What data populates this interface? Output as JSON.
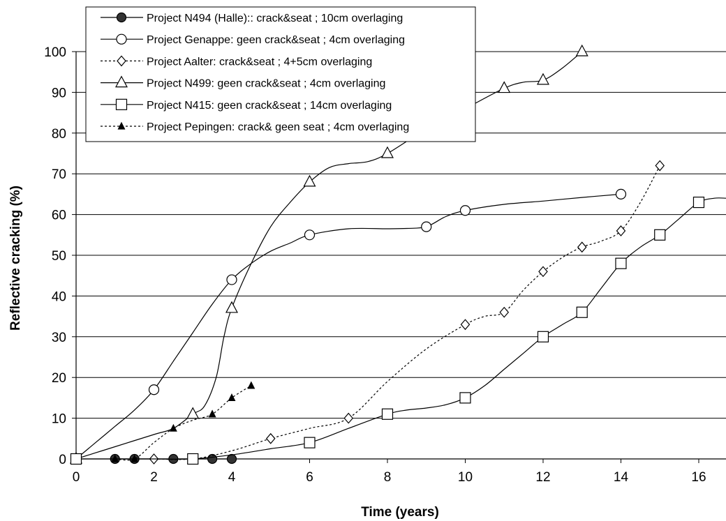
{
  "chart_data": {
    "type": "line",
    "title": "",
    "xlabel": "Time (years)",
    "ylabel": "Reflective cracking (%)",
    "xlim": [
      0,
      16.7
    ],
    "ylim": [
      0,
      100
    ],
    "x_ticks": [
      0,
      2,
      4,
      6,
      8,
      10,
      12,
      14,
      16
    ],
    "y_ticks": [
      0,
      10,
      20,
      30,
      40,
      50,
      60,
      70,
      80,
      90,
      100
    ],
    "grid": "horizontal",
    "legend_position": "top-left",
    "series": [
      {
        "name": "Project N494 (Halle):: crack&seat ; 10cm overlaging",
        "marker": "filled-circle",
        "line": "solid",
        "color": "#000000",
        "points": [
          [
            1,
            0
          ],
          [
            1.5,
            0
          ],
          [
            2.5,
            0
          ],
          [
            3.5,
            0
          ],
          [
            4,
            0
          ]
        ],
        "path": [
          [
            1,
            0
          ],
          [
            1.5,
            0
          ],
          [
            2.5,
            0
          ],
          [
            3.5,
            0
          ],
          [
            4,
            0
          ]
        ]
      },
      {
        "name": "Project Genappe: geen crack&seat ; 4cm overlaging",
        "marker": "open-circle",
        "line": "solid",
        "color": "#000000",
        "points": [
          [
            0,
            0
          ],
          [
            2,
            17
          ],
          [
            4,
            44
          ],
          [
            6,
            55
          ],
          [
            9,
            57
          ],
          [
            10,
            61
          ],
          [
            14,
            65
          ]
        ],
        "path": [
          [
            0,
            0
          ],
          [
            0.5,
            4
          ],
          [
            1,
            8
          ],
          [
            1.5,
            12
          ],
          [
            2,
            17
          ],
          [
            2.5,
            24
          ],
          [
            3,
            31
          ],
          [
            3.5,
            38
          ],
          [
            4,
            44
          ],
          [
            4.5,
            48
          ],
          [
            5,
            51
          ],
          [
            5.5,
            53
          ],
          [
            6,
            55
          ],
          [
            7,
            56.5
          ],
          [
            8,
            56.5
          ],
          [
            8.5,
            56.6
          ],
          [
            9,
            57
          ],
          [
            9.5,
            59.5
          ],
          [
            10,
            61
          ],
          [
            11,
            62.5
          ],
          [
            12,
            63.3
          ],
          [
            13,
            64.2
          ],
          [
            14,
            65
          ]
        ]
      },
      {
        "name": "Project Aalter: crack&seat ; 4+5cm overlaging",
        "marker": "open-diamond",
        "line": "dotted",
        "color": "#000000",
        "points": [
          [
            2,
            0
          ],
          [
            3,
            0
          ],
          [
            5,
            5
          ],
          [
            7,
            10
          ],
          [
            10,
            33
          ],
          [
            11,
            36
          ],
          [
            12,
            46
          ],
          [
            13,
            52
          ],
          [
            14,
            56
          ],
          [
            15,
            72
          ]
        ],
        "path": [
          [
            2,
            0
          ],
          [
            3,
            0
          ],
          [
            4,
            2
          ],
          [
            5,
            5
          ],
          [
            6,
            7.5
          ],
          [
            7,
            10
          ],
          [
            8,
            19
          ],
          [
            9,
            27
          ],
          [
            10,
            33
          ],
          [
            10.5,
            35
          ],
          [
            11,
            36
          ],
          [
            11.5,
            41.5
          ],
          [
            12,
            46
          ],
          [
            12.5,
            49.5
          ],
          [
            13,
            52
          ],
          [
            13.5,
            53.5
          ],
          [
            14,
            56
          ],
          [
            14.5,
            63
          ],
          [
            15,
            72
          ]
        ]
      },
      {
        "name": "Project N499: geen crack&seat ; 4cm overlaging",
        "marker": "open-triangle",
        "line": "solid",
        "color": "#000000",
        "points": [
          [
            0,
            0
          ],
          [
            3,
            11
          ],
          [
            4,
            37
          ],
          [
            6,
            68
          ],
          [
            8,
            75
          ],
          [
            11,
            91
          ],
          [
            12,
            93
          ],
          [
            13,
            100
          ]
        ],
        "path": [
          [
            0,
            0
          ],
          [
            0.5,
            1.5
          ],
          [
            1,
            3
          ],
          [
            2,
            6
          ],
          [
            2.5,
            7.5
          ],
          [
            3,
            11
          ],
          [
            3.3,
            13
          ],
          [
            3.6,
            20
          ],
          [
            3.8,
            30
          ],
          [
            4,
            37
          ],
          [
            4.5,
            48
          ],
          [
            5,
            57
          ],
          [
            5.5,
            63
          ],
          [
            6,
            68
          ],
          [
            6.5,
            71.5
          ],
          [
            7,
            72.5
          ],
          [
            7.5,
            73
          ],
          [
            8,
            75
          ],
          [
            9,
            81
          ],
          [
            10,
            86
          ],
          [
            11,
            91
          ],
          [
            11.5,
            92.5
          ],
          [
            12,
            93
          ],
          [
            12.5,
            96
          ],
          [
            13,
            100
          ]
        ]
      },
      {
        "name": "Project N415: geen crack&seat ; 14cm overlaging",
        "marker": "open-square",
        "line": "solid",
        "color": "#000000",
        "points": [
          [
            0,
            0
          ],
          [
            3,
            0
          ],
          [
            6,
            4
          ],
          [
            8,
            11
          ],
          [
            10,
            15
          ],
          [
            12,
            30
          ],
          [
            13,
            36
          ],
          [
            14,
            48
          ],
          [
            15,
            55
          ],
          [
            16,
            63
          ]
        ],
        "path": [
          [
            0,
            0
          ],
          [
            1,
            0
          ],
          [
            2,
            0
          ],
          [
            3,
            0
          ],
          [
            4,
            1
          ],
          [
            5,
            2.5
          ],
          [
            6,
            4
          ],
          [
            7,
            7.5
          ],
          [
            8,
            11
          ],
          [
            8.5,
            12
          ],
          [
            9,
            12.5
          ],
          [
            9.5,
            13.3
          ],
          [
            10,
            15
          ],
          [
            10.5,
            18
          ],
          [
            11,
            22
          ],
          [
            11.5,
            26
          ],
          [
            12,
            30
          ],
          [
            12.5,
            33
          ],
          [
            13,
            36
          ],
          [
            13.5,
            42
          ],
          [
            14,
            48
          ],
          [
            14.5,
            52
          ],
          [
            15,
            55
          ],
          [
            15.5,
            59
          ],
          [
            16,
            63
          ],
          [
            16.4,
            64
          ],
          [
            16.7,
            64
          ]
        ]
      },
      {
        "name": "Project Pepingen: crack& geen seat ; 4cm overlaging",
        "marker": "filled-triangle",
        "line": "dotted",
        "color": "#000000",
        "points": [
          [
            1,
            0
          ],
          [
            1.5,
            0
          ],
          [
            2.5,
            7.5
          ],
          [
            3.5,
            11
          ],
          [
            4,
            15
          ],
          [
            4.5,
            18
          ]
        ],
        "path": [
          [
            1,
            0
          ],
          [
            1.5,
            0
          ],
          [
            2,
            4
          ],
          [
            2.5,
            7.5
          ],
          [
            3,
            9.5
          ],
          [
            3.5,
            11
          ],
          [
            4,
            15
          ],
          [
            4.5,
            18
          ]
        ]
      }
    ]
  }
}
